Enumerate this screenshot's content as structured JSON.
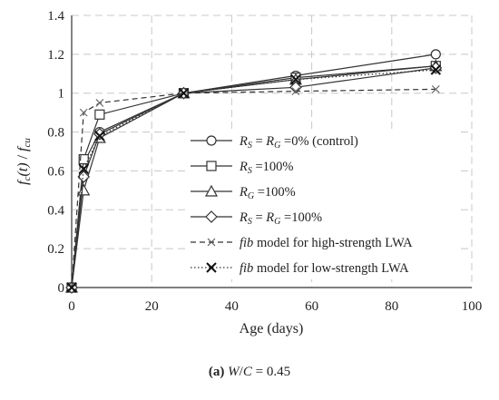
{
  "chart_data": {
    "type": "line",
    "ylabel": "f_c(t) / f_cu",
    "xlabel": "Age (days)",
    "xlim": [
      0,
      100
    ],
    "ylim": [
      0,
      1.4
    ],
    "xticks": [
      "0",
      "20",
      "40",
      "60",
      "80",
      "100"
    ],
    "yticks": [
      "0",
      "0.2",
      "0.4",
      "0.6",
      "0.8",
      "1",
      "1.2",
      "1.4"
    ],
    "grid": "dashed",
    "legend_position": "bottom-right",
    "series": [
      {
        "key": "control",
        "label": "RS = RG =0% (control)",
        "marker": "circle",
        "line": "solid",
        "x": [
          0,
          3,
          7,
          28,
          56,
          91
        ],
        "y": [
          0,
          0.64,
          0.8,
          1.0,
          1.09,
          1.2
        ]
      },
      {
        "key": "rs100",
        "label": "RS =100%",
        "marker": "square",
        "line": "solid",
        "x": [
          0,
          3,
          7,
          28,
          56,
          91
        ],
        "y": [
          0,
          0.66,
          0.89,
          1.0,
          1.08,
          1.14
        ]
      },
      {
        "key": "rg100",
        "label": "RG =100%",
        "marker": "triangle",
        "line": "solid",
        "x": [
          0,
          3,
          7,
          28,
          56,
          91
        ],
        "y": [
          0,
          0.5,
          0.77,
          1.0,
          1.07,
          1.14
        ]
      },
      {
        "key": "rsrg100",
        "label": "RS = RG =100%",
        "marker": "diamond",
        "line": "solid",
        "x": [
          0,
          3,
          7,
          28,
          56,
          91
        ],
        "y": [
          0,
          0.57,
          0.79,
          1.0,
          1.03,
          1.13
        ]
      },
      {
        "key": "fib_high",
        "label": "fib model for high-strength LWA",
        "marker": "star",
        "line": "dashed",
        "x": [
          0,
          3,
          7,
          28,
          56,
          91
        ],
        "y": [
          0,
          0.9,
          0.95,
          1.0,
          1.01,
          1.02
        ]
      },
      {
        "key": "fib_low",
        "label": "fib model for low-strength LWA",
        "marker": "x",
        "line": "dotted",
        "x": [
          0,
          3,
          7,
          28,
          56,
          91
        ],
        "y": [
          0,
          0.61,
          0.78,
          1.0,
          1.07,
          1.12
        ]
      }
    ],
    "caption": "(a) W/C = 0.45"
  }
}
